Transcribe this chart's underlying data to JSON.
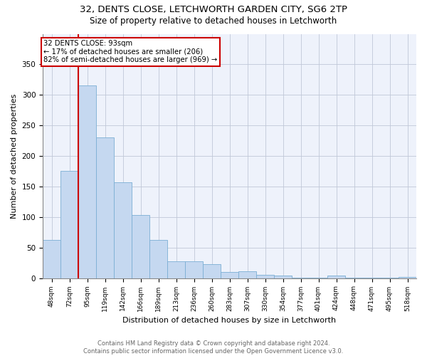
{
  "title1": "32, DENTS CLOSE, LETCHWORTH GARDEN CITY, SG6 2TP",
  "title2": "Size of property relative to detached houses in Letchworth",
  "xlabel": "Distribution of detached houses by size in Letchworth",
  "ylabel": "Number of detached properties",
  "footnote1": "Contains HM Land Registry data © Crown copyright and database right 2024.",
  "footnote2": "Contains public sector information licensed under the Open Government Licence v3.0.",
  "annotation_line1": "32 DENTS CLOSE: 93sqm",
  "annotation_line2": "← 17% of detached houses are smaller (206)",
  "annotation_line3": "82% of semi-detached houses are larger (969) →",
  "bar_color": "#c5d8f0",
  "bar_edge_color": "#7bafd4",
  "vline_color": "#cc0000",
  "annotation_box_edgecolor": "#cc0000",
  "background_color": "#eef2fb",
  "grid_color": "#c0c8d8",
  "categories": [
    "48sqm",
    "72sqm",
    "95sqm",
    "119sqm",
    "142sqm",
    "166sqm",
    "189sqm",
    "213sqm",
    "236sqm",
    "260sqm",
    "283sqm",
    "307sqm",
    "330sqm",
    "354sqm",
    "377sqm",
    "401sqm",
    "424sqm",
    "448sqm",
    "471sqm",
    "495sqm",
    "518sqm"
  ],
  "values": [
    63,
    175,
    315,
    230,
    157,
    103,
    62,
    28,
    27,
    23,
    10,
    11,
    5,
    4,
    1,
    1,
    4,
    1,
    1,
    1,
    2
  ],
  "ylim": [
    0,
    400
  ],
  "yticks": [
    0,
    50,
    100,
    150,
    200,
    250,
    300,
    350
  ],
  "vline_x_index": 1.5,
  "figsize": [
    6.0,
    5.0
  ],
  "dpi": 100
}
